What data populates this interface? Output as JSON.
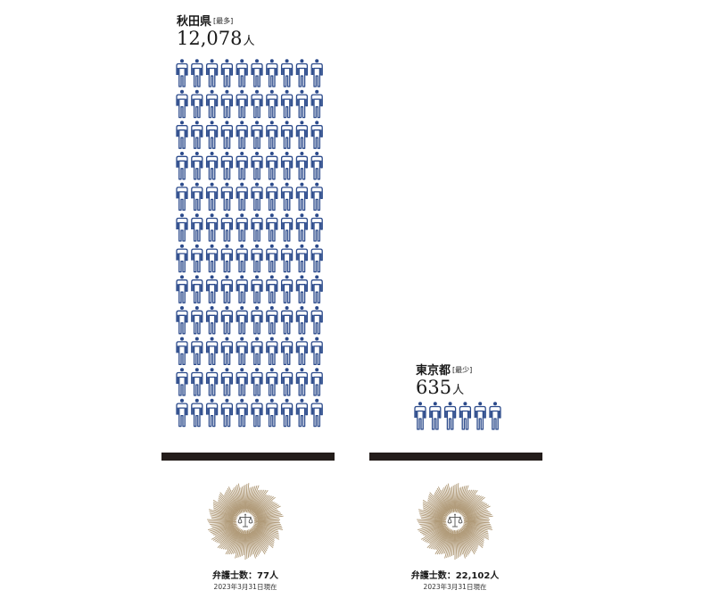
{
  "chart_data": {
    "type": "pictogram",
    "colors": {
      "figure": "#2b4a8b",
      "bar": "#241d1b",
      "emblem": "#b09a78"
    },
    "icons": [
      "person-icon",
      "scales-of-justice-icon"
    ],
    "panels": [
      {
        "id": "akita",
        "prefecture": "秋田県",
        "tag": "[最多]",
        "value_number": "12,078",
        "unit": "人",
        "people_per_lawyer": 12078,
        "figures_shown": 120,
        "figure_columns": 10,
        "lawyers_caption": "弁護士数：77人",
        "lawyers": 77,
        "date": "2023年3月31日現在"
      },
      {
        "id": "tokyo",
        "prefecture": "東京都",
        "tag": "[最少]",
        "value_number": "635",
        "unit": "人",
        "people_per_lawyer": 635,
        "figures_shown": 6,
        "figure_columns": 6,
        "lawyers_caption": "弁護士数：22,102人",
        "lawyers": 22102,
        "date": "2023年3月31日現在"
      }
    ]
  }
}
